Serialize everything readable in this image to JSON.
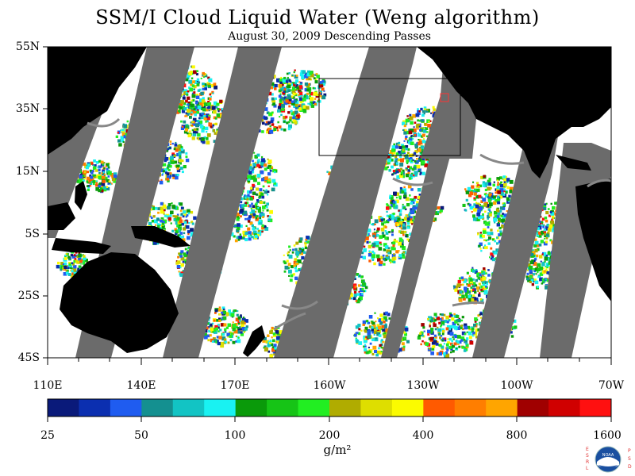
{
  "title": "SSM/I Cloud Liquid Water (Weng algorithm)",
  "subtitle": "August 30, 2009  Descending Passes",
  "lat_labels": [
    "55N",
    "35N",
    "15N",
    "5S",
    "25S",
    "45S"
  ],
  "lon_labels": [
    "110E",
    "140E",
    "170E",
    "160W",
    "130W",
    "100W",
    "70W"
  ],
  "colorbar": {
    "tick_labels": [
      "25",
      "50",
      "100",
      "200",
      "400",
      "800",
      "1600"
    ],
    "unit": "g/m²",
    "colors": [
      "#0a1a7a",
      "#0b2fb0",
      "#1f5cf0",
      "#149090",
      "#12c4c4",
      "#19f2f2",
      "#0a9a0a",
      "#16c416",
      "#22ee22",
      "#b0ac00",
      "#dede00",
      "#fbfb00",
      "#ff5a00",
      "#ff7e00",
      "#ffa500",
      "#a00000",
      "#d00000",
      "#ff1010"
    ]
  },
  "legend_marks": {
    "logo_left": "ESRL",
    "logo_right": "PSD",
    "logo_center": "NOAA"
  },
  "colors": {
    "land": "#000000",
    "no_data_swath_gap": "#6b6b6b",
    "clear_ocean": "#ffffff"
  }
}
